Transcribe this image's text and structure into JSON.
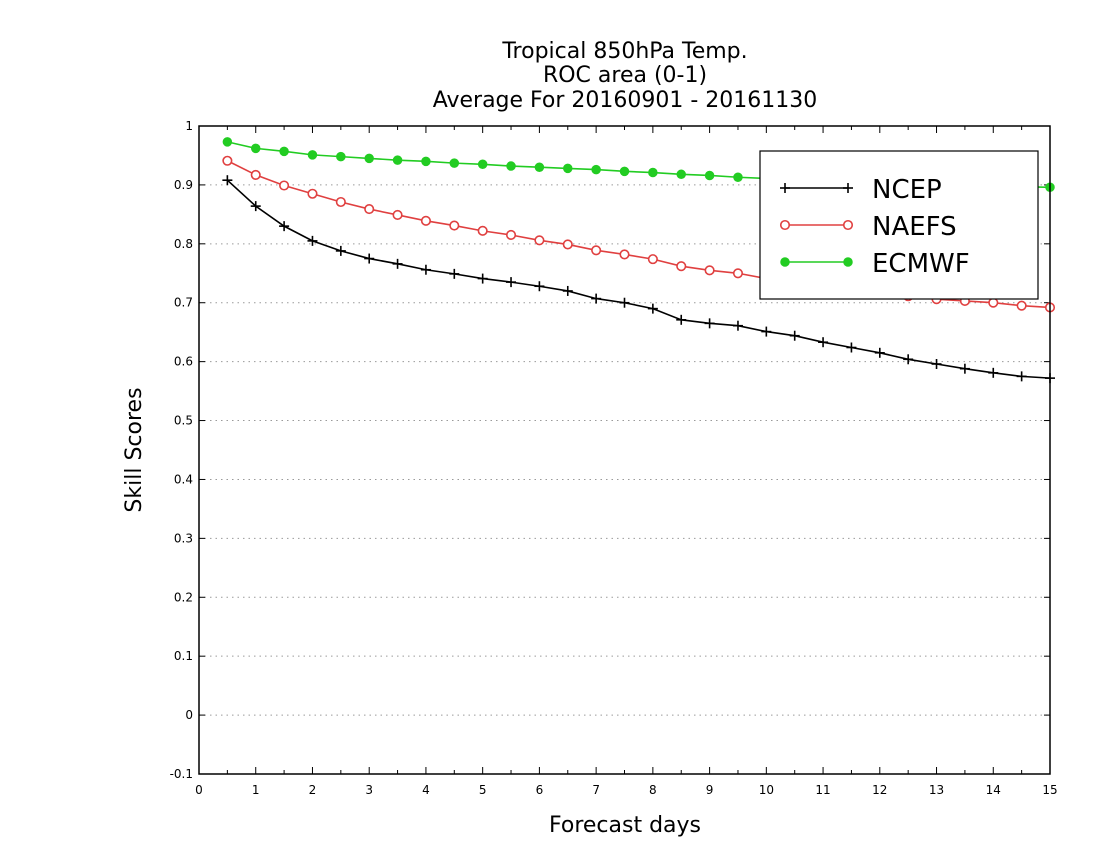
{
  "chart_data": {
    "type": "line",
    "title_lines": [
      "Tropical 850hPa Temp.",
      "ROC area (0-1)",
      "Average For 20160901 - 20161130"
    ],
    "xlabel": "Forecast days",
    "ylabel": "Skill Scores",
    "xlim": [
      0,
      15
    ],
    "ylim": [
      -0.1,
      1
    ],
    "xticks": [
      0,
      1,
      2,
      3,
      4,
      5,
      6,
      7,
      8,
      9,
      10,
      11,
      12,
      13,
      14,
      15
    ],
    "yticks": [
      -0.1,
      0,
      0.1,
      0.2,
      0.3,
      0.4,
      0.5,
      0.6,
      0.7,
      0.8,
      0.9,
      1
    ],
    "ytick_labels": [
      "-0.1",
      "0",
      "0.1",
      "0.2",
      "0.3",
      "0.4",
      "0.5",
      "0.6",
      "0.7",
      "0.8",
      "0.9",
      "1"
    ],
    "grid": "horizontal dotted",
    "legend_position": "top-right",
    "x": [
      0.5,
      1,
      1.5,
      2,
      2.5,
      3,
      3.5,
      4,
      4.5,
      5,
      5.5,
      6,
      6.5,
      7,
      7.5,
      8,
      8.5,
      9,
      9.5,
      10,
      10.5,
      11,
      11.5,
      12,
      12.5,
      13,
      13.5,
      14,
      14.5,
      15
    ],
    "series": [
      {
        "name": "NCEP",
        "color": "#000000",
        "marker": "plus",
        "values": [
          0.908,
          0.864,
          0.83,
          0.805,
          0.788,
          0.775,
          0.766,
          0.756,
          0.749,
          0.741,
          0.735,
          0.728,
          0.72,
          0.707,
          0.7,
          0.69,
          0.671,
          0.665,
          0.661,
          0.651,
          0.644,
          0.633,
          0.624,
          0.615,
          0.604,
          0.596,
          0.588,
          0.581,
          0.575,
          0.572
        ]
      },
      {
        "name": "NAEFS",
        "color": "#e04040",
        "marker": "open-circle",
        "values": [
          0.941,
          0.917,
          0.899,
          0.885,
          0.871,
          0.859,
          0.849,
          0.839,
          0.831,
          0.822,
          0.815,
          0.806,
          0.799,
          0.789,
          0.782,
          0.774,
          0.762,
          0.755,
          0.75,
          0.741,
          0.735,
          0.728,
          0.722,
          0.716,
          0.711,
          0.706,
          0.703,
          0.7,
          0.695,
          0.692
        ]
      },
      {
        "name": "ECMWF",
        "color": "#22cc22",
        "marker": "filled-circle",
        "values": [
          0.973,
          0.962,
          0.957,
          0.951,
          0.948,
          0.945,
          0.942,
          0.94,
          0.937,
          0.935,
          0.932,
          0.93,
          0.928,
          0.926,
          0.923,
          0.921,
          0.918,
          0.916,
          0.913,
          0.911,
          0.909,
          0.907,
          0.905,
          0.903,
          0.901,
          0.9,
          0.899,
          0.898,
          0.897,
          0.896
        ]
      }
    ]
  }
}
